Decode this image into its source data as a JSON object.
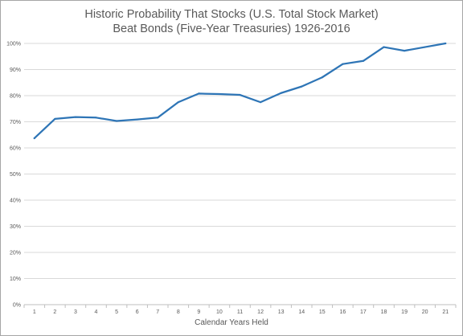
{
  "chart_data": {
    "type": "line",
    "title_line1": "Historic Probability That Stocks (U.S. Total Stock Market)",
    "title_line2": "Beat Bonds (Five-Year Treasuries) 1926-2016",
    "xlabel": "Calendar Years Held",
    "ylabel": "",
    "x": [
      1,
      2,
      3,
      4,
      5,
      6,
      7,
      8,
      9,
      10,
      11,
      12,
      13,
      14,
      15,
      16,
      17,
      18,
      19,
      20,
      21
    ],
    "y_tick_labels": [
      "0%",
      "10%",
      "20%",
      "30%",
      "40%",
      "50%",
      "60%",
      "70%",
      "80%",
      "90%",
      "100%"
    ],
    "ylim": [
      0,
      100
    ],
    "grid": true,
    "legend": "none",
    "series": [
      {
        "values": [
          63.7,
          71.1,
          71.8,
          71.6,
          70.3,
          70.9,
          71.6,
          77.5,
          80.8,
          80.6,
          80.3,
          77.5,
          81.0,
          83.5,
          87.0,
          92.1,
          93.3,
          98.6,
          97.2,
          98.6,
          100.0
        ],
        "color": "#2e75b6"
      }
    ],
    "colors": {
      "line": "#2e75b6",
      "grid": "#d9d9d9",
      "text": "#595959"
    }
  }
}
